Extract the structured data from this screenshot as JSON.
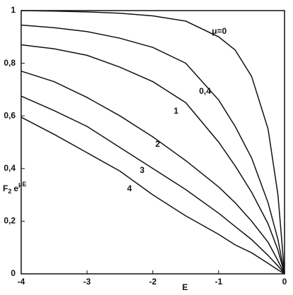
{
  "chart_data": {
    "type": "line",
    "x_label": "E",
    "y_label": {
      "base": "F",
      "sub": "2",
      "exp_base": "e",
      "sup": "μE"
    },
    "x": [
      -4,
      -3.5,
      -3,
      -2.5,
      -2,
      -1.5,
      -1,
      -0.75,
      -0.5,
      -0.25,
      -0.1,
      0
    ],
    "series": [
      {
        "name": "μ=0",
        "color": "#111111",
        "values": [
          1.0,
          0.998,
          0.995,
          0.99,
          0.98,
          0.96,
          0.9,
          0.85,
          0.75,
          0.55,
          0.3,
          0
        ]
      },
      {
        "name": "0,4",
        "color": "#111111",
        "values": [
          0.945,
          0.935,
          0.92,
          0.895,
          0.86,
          0.8,
          0.66,
          0.56,
          0.44,
          0.27,
          0.13,
          0
        ]
      },
      {
        "name": "1",
        "color": "#111111",
        "values": [
          0.87,
          0.855,
          0.83,
          0.785,
          0.73,
          0.65,
          0.5,
          0.41,
          0.31,
          0.19,
          0.09,
          0
        ]
      },
      {
        "name": "2",
        "color": "#111111",
        "values": [
          0.77,
          0.73,
          0.67,
          0.6,
          0.52,
          0.43,
          0.33,
          0.27,
          0.2,
          0.12,
          0.05,
          0
        ]
      },
      {
        "name": "3",
        "color": "#111111",
        "values": [
          0.675,
          0.62,
          0.56,
          0.48,
          0.4,
          0.32,
          0.23,
          0.18,
          0.13,
          0.07,
          0.03,
          0
        ]
      },
      {
        "name": "4",
        "color": "#111111",
        "values": [
          0.595,
          0.53,
          0.46,
          0.39,
          0.3,
          0.22,
          0.15,
          0.11,
          0.08,
          0.04,
          0.015,
          0
        ]
      }
    ],
    "xlim": [
      -4,
      0
    ],
    "xticks": [
      -4,
      -3,
      -2,
      -1,
      0
    ],
    "ylim": [
      0,
      1
    ],
    "yticks": [
      0,
      {
        "value": 0.2,
        "label": "0,2"
      },
      {
        "value": 0.4,
        "label": "0,4"
      },
      {
        "value": 0.6,
        "label": "0,6"
      },
      {
        "value": 0.8,
        "label": "0,8"
      },
      1
    ],
    "grid": false
  }
}
